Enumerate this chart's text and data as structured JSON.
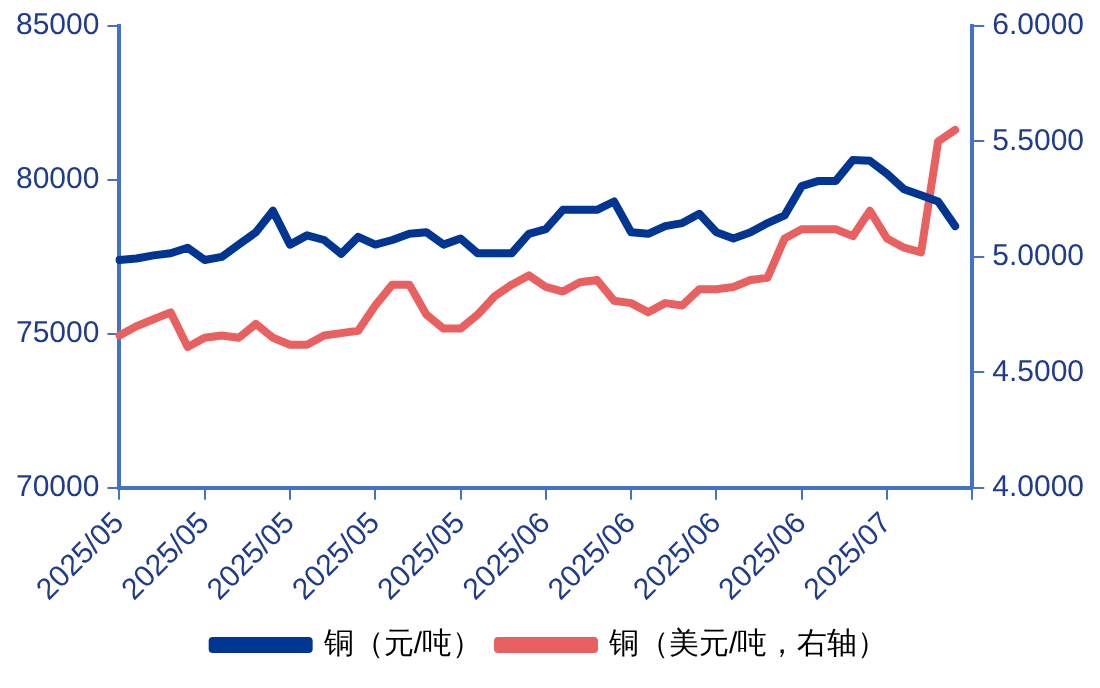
{
  "chart_data": {
    "type": "line",
    "categories": [
      "2025/05",
      null,
      null,
      null,
      null,
      "2025/05",
      null,
      null,
      null,
      null,
      "2025/05",
      null,
      null,
      null,
      null,
      "2025/05",
      null,
      null,
      null,
      null,
      "2025/05",
      null,
      null,
      null,
      null,
      "2025/06",
      null,
      null,
      null,
      null,
      "2025/06",
      null,
      null,
      null,
      null,
      "2025/06",
      null,
      null,
      null,
      null,
      "2025/06",
      null,
      null,
      null,
      null,
      "2025/07",
      null,
      null,
      null,
      null,
      null
    ],
    "series": [
      {
        "name": "铜（元/吨）",
        "color": "#003591",
        "values": [
          77400,
          77450,
          77550,
          77620,
          77800,
          77400,
          77500,
          77900,
          78300,
          79000,
          77900,
          78200,
          78050,
          77600,
          78150,
          77900,
          78050,
          78250,
          78300,
          77900,
          78100,
          77620,
          77620,
          77620,
          78250,
          78400,
          79030,
          79030,
          79030,
          79300,
          78300,
          78250,
          78500,
          78600,
          78900,
          78300,
          78100,
          78300,
          78600,
          78850,
          79800,
          79970,
          79970,
          80650,
          80620,
          80200,
          79700,
          79500,
          79300,
          78500,
          null
        ]
      },
      {
        "name": "铜（美元/吨，右轴）",
        "color": "#e8605f",
        "axis": "y2",
        "values": [
          4.66,
          4.7,
          4.73,
          4.76,
          4.61,
          4.65,
          4.66,
          4.65,
          4.71,
          4.65,
          4.62,
          4.62,
          4.66,
          4.67,
          4.68,
          4.79,
          4.88,
          4.88,
          4.75,
          4.69,
          4.69,
          4.75,
          4.83,
          4.88,
          4.92,
          4.87,
          4.85,
          4.89,
          4.9,
          4.81,
          4.8,
          4.76,
          4.8,
          4.79,
          4.86,
          4.86,
          4.87,
          4.9,
          4.91,
          5.08,
          5.12,
          5.12,
          5.12,
          5.09,
          5.2,
          5.08,
          5.04,
          5.02,
          5.5,
          5.55,
          null
        ]
      }
    ],
    "ylim": [
      70000,
      85000
    ],
    "yticks": [
      70000,
      75000,
      80000,
      85000
    ],
    "y2lim": [
      4,
      6
    ],
    "y2ticks": [
      {
        "value": 4,
        "label": "4.0000"
      },
      {
        "value": 4.5,
        "label": "4.5000"
      },
      {
        "value": 5,
        "label": "5.0000"
      },
      {
        "value": 5.5,
        "label": "5.5000"
      },
      {
        "value": 6,
        "label": "6.0000"
      }
    ],
    "grid": false,
    "legend": "bottom",
    "marker": "none",
    "line_style": "solid"
  }
}
